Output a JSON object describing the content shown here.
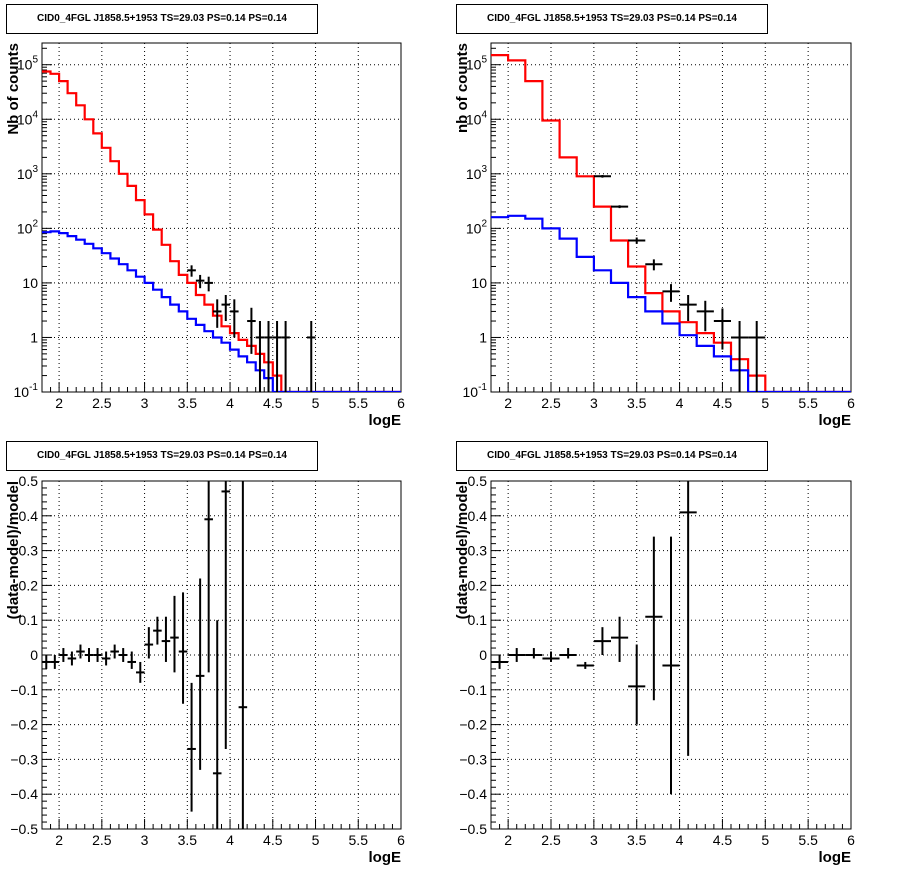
{
  "chart_data": [
    {
      "type": "line",
      "title": "CID0_4FGL J1858.5+1953 TS=29.03 PS=0.14 PS=0.14",
      "xlabel": "logE",
      "ylabel": "Nb of counts",
      "xlim": [
        1.8,
        6.0
      ],
      "ylim": [
        0.1,
        250000
      ],
      "yscale": "log",
      "grid": true,
      "x_ticks": [
        "2",
        "2.5",
        "3",
        "3.5",
        "4",
        "4.5",
        "5",
        "5.5",
        "6"
      ],
      "y_ticks": [
        "10^-1",
        "1",
        "10",
        "10^2",
        "10^3",
        "10^4",
        "10^5"
      ],
      "bin_edges": [
        1.8,
        1.9,
        2.0,
        2.1,
        2.2,
        2.3,
        2.4,
        2.5,
        2.6,
        2.7,
        2.8,
        2.9,
        3.0,
        3.1,
        3.2,
        3.3,
        3.4,
        3.5,
        3.6,
        3.7,
        3.8,
        3.9,
        4.0,
        4.1,
        4.2,
        4.3,
        4.4,
        4.5,
        4.6,
        4.7,
        4.8,
        4.9,
        5.0,
        5.1,
        5.2,
        5.3,
        5.4,
        5.5,
        5.6,
        5.7,
        5.8,
        5.9,
        6.0
      ],
      "series": [
        {
          "color": "#ff0000",
          "style": "step",
          "values": [
            75000,
            68000,
            50000,
            30000,
            18000,
            10000,
            5500,
            3000,
            1700,
            1000,
            600,
            330,
            180,
            95,
            50,
            25,
            14,
            10,
            6,
            4,
            2.5,
            1.6,
            1.2,
            0.9,
            0.7,
            0.5,
            0.35,
            0.2,
            0.1,
            0.1,
            0.1,
            0.1,
            0.1,
            0.1,
            0.1,
            0.1,
            0.1,
            0.1,
            0.1,
            0.1,
            0.1,
            0.1
          ]
        },
        {
          "color": "#0000ff",
          "style": "step",
          "values": [
            85,
            88,
            82,
            72,
            62,
            52,
            43,
            35,
            28,
            22,
            17,
            13,
            10,
            7.5,
            5.5,
            4,
            3,
            2.2,
            1.7,
            1.3,
            1.0,
            0.8,
            0.6,
            0.45,
            0.35,
            0.25,
            0.18,
            0.1,
            0.1,
            0.1,
            0.1,
            0.1,
            0.1,
            0.1,
            0.1,
            0.1,
            0.1,
            0.1,
            0.1,
            0.1,
            0.1,
            0.1
          ]
        },
        {
          "color": "#000000",
          "style": "errorbars",
          "points": [
            {
              "x": 3.55,
              "y": 17,
              "ylo": 13,
              "yhi": 21
            },
            {
              "x": 3.65,
              "y": 11,
              "ylo": 8,
              "yhi": 14
            },
            {
              "x": 3.75,
              "y": 10,
              "ylo": 7,
              "yhi": 13
            },
            {
              "x": 3.85,
              "y": 3,
              "ylo": 1.5,
              "yhi": 5
            },
            {
              "x": 3.95,
              "y": 4,
              "ylo": 2,
              "yhi": 6
            },
            {
              "x": 4.05,
              "y": 3,
              "ylo": 1,
              "yhi": 5
            },
            {
              "x": 4.25,
              "y": 2,
              "ylo": 0.5,
              "yhi": 3.5
            },
            {
              "x": 4.35,
              "y": 1,
              "ylo": 0.1,
              "yhi": 2
            },
            {
              "x": 4.45,
              "y": 1,
              "ylo": 0.1,
              "yhi": 2
            },
            {
              "x": 4.55,
              "y": 1,
              "ylo": 0.1,
              "yhi": 2
            },
            {
              "x": 4.65,
              "y": 1,
              "ylo": 0.1,
              "yhi": 2
            },
            {
              "x": 4.95,
              "y": 1,
              "ylo": 0.1,
              "yhi": 2
            }
          ]
        }
      ]
    },
    {
      "type": "line",
      "title": "CID0_4FGL J1858.5+1953 TS=29.03 PS=0.14 PS=0.14",
      "xlabel": "logE",
      "ylabel": "nb of counts",
      "xlim": [
        1.8,
        6.0
      ],
      "ylim": [
        0.1,
        250000
      ],
      "yscale": "log",
      "grid": true,
      "x_ticks": [
        "2",
        "2.5",
        "3",
        "3.5",
        "4",
        "4.5",
        "5",
        "5.5",
        "6"
      ],
      "y_ticks": [
        "10^-1",
        "1",
        "10",
        "10^2",
        "10^3",
        "10^4",
        "10^5"
      ],
      "bin_edges": [
        1.8,
        2.0,
        2.2,
        2.4,
        2.6,
        2.8,
        3.0,
        3.2,
        3.4,
        3.6,
        3.8,
        4.0,
        4.2,
        4.4,
        4.6,
        4.8,
        5.0,
        5.2,
        5.4,
        5.6,
        5.8,
        6.0
      ],
      "series": [
        {
          "color": "#ff0000",
          "style": "step",
          "values": [
            150000,
            120000,
            50000,
            9500,
            2000,
            900,
            250,
            60,
            20,
            6.5,
            3,
            1.9,
            1.2,
            0.8,
            0.4,
            0.2,
            0.1,
            0.1,
            0.1,
            0.1,
            0.1
          ]
        },
        {
          "color": "#0000ff",
          "style": "step",
          "values": [
            160,
            170,
            150,
            100,
            65,
            30,
            17,
            10,
            5.5,
            3,
            1.8,
            1.1,
            0.7,
            0.45,
            0.25,
            0.1,
            0.1,
            0.1,
            0.1,
            0.1,
            0.1
          ]
        },
        {
          "color": "#000000",
          "style": "errorbars",
          "points": [
            {
              "x": 3.1,
              "y": 900,
              "ylo": 850,
              "yhi": 950
            },
            {
              "x": 3.3,
              "y": 250,
              "ylo": 235,
              "yhi": 265
            },
            {
              "x": 3.5,
              "y": 60,
              "ylo": 52,
              "yhi": 68
            },
            {
              "x": 3.7,
              "y": 22,
              "ylo": 17,
              "yhi": 27
            },
            {
              "x": 3.9,
              "y": 7,
              "ylo": 4.5,
              "yhi": 9.5
            },
            {
              "x": 4.1,
              "y": 4,
              "ylo": 2,
              "yhi": 6
            },
            {
              "x": 4.3,
              "y": 3,
              "ylo": 1.3,
              "yhi": 4.7
            },
            {
              "x": 4.5,
              "y": 2,
              "ylo": 0.6,
              "yhi": 3.4
            },
            {
              "x": 4.7,
              "y": 1,
              "ylo": 0.1,
              "yhi": 2
            },
            {
              "x": 4.9,
              "y": 1,
              "ylo": 0.1,
              "yhi": 2
            }
          ]
        }
      ]
    },
    {
      "type": "scatter",
      "title": "CID0_4FGL J1858.5+1953 TS=29.03 PS=0.14 PS=0.14",
      "xlabel": "logE",
      "ylabel": "(data-model)/model",
      "xlim": [
        1.8,
        6.0
      ],
      "ylim": [
        -0.5,
        0.5
      ],
      "grid": true,
      "x_ticks": [
        "2",
        "2.5",
        "3",
        "3.5",
        "4",
        "4.5",
        "5",
        "5.5",
        "6"
      ],
      "y_ticks": [
        "-0.5",
        "-0.4",
        "-0.3",
        "-0.2",
        "-0.1",
        "0",
        "0.1",
        "0.2",
        "0.3",
        "0.4",
        "0.5"
      ],
      "points": [
        {
          "x": 1.85,
          "y": -0.02,
          "ylo": -0.04,
          "yhi": 0.0
        },
        {
          "x": 1.95,
          "y": -0.02,
          "ylo": -0.04,
          "yhi": 0.0
        },
        {
          "x": 2.05,
          "y": 0.0,
          "ylo": -0.02,
          "yhi": 0.02
        },
        {
          "x": 2.15,
          "y": -0.01,
          "ylo": -0.03,
          "yhi": 0.01
        },
        {
          "x": 2.25,
          "y": 0.01,
          "ylo": -0.01,
          "yhi": 0.03
        },
        {
          "x": 2.35,
          "y": 0.0,
          "ylo": -0.02,
          "yhi": 0.02
        },
        {
          "x": 2.45,
          "y": 0.0,
          "ylo": -0.02,
          "yhi": 0.02
        },
        {
          "x": 2.55,
          "y": -0.01,
          "ylo": -0.03,
          "yhi": 0.01
        },
        {
          "x": 2.65,
          "y": 0.01,
          "ylo": -0.01,
          "yhi": 0.03
        },
        {
          "x": 2.75,
          "y": 0.0,
          "ylo": -0.02,
          "yhi": 0.02
        },
        {
          "x": 2.85,
          "y": -0.02,
          "ylo": -0.04,
          "yhi": 0.01
        },
        {
          "x": 2.95,
          "y": -0.05,
          "ylo": -0.08,
          "yhi": -0.02
        },
        {
          "x": 3.05,
          "y": 0.03,
          "ylo": -0.01,
          "yhi": 0.08
        },
        {
          "x": 3.15,
          "y": 0.07,
          "ylo": 0.03,
          "yhi": 0.11
        },
        {
          "x": 3.25,
          "y": 0.04,
          "ylo": -0.02,
          "yhi": 0.11
        },
        {
          "x": 3.35,
          "y": 0.05,
          "ylo": -0.05,
          "yhi": 0.17
        },
        {
          "x": 3.45,
          "y": 0.01,
          "ylo": -0.14,
          "yhi": 0.18
        },
        {
          "x": 3.55,
          "y": -0.27,
          "ylo": -0.45,
          "yhi": -0.08
        },
        {
          "x": 3.65,
          "y": -0.06,
          "ylo": -0.33,
          "yhi": 0.22
        },
        {
          "x": 3.75,
          "y": 0.39,
          "ylo": -0.05,
          "yhi": 0.8
        },
        {
          "x": 3.85,
          "y": -0.34,
          "ylo": -0.8,
          "yhi": 0.1
        },
        {
          "x": 3.95,
          "y": 0.47,
          "ylo": -0.27,
          "yhi": 0.8
        },
        {
          "x": 4.15,
          "y": -0.15,
          "ylo": -0.8,
          "yhi": 0.8
        }
      ]
    },
    {
      "type": "scatter",
      "title": "CID0_4FGL J1858.5+1953 TS=29.03 PS=0.14 PS=0.14",
      "xlabel": "logE",
      "ylabel": "(data-model)/model",
      "xlim": [
        1.8,
        6.0
      ],
      "ylim": [
        -0.5,
        0.5
      ],
      "grid": true,
      "x_ticks": [
        "2",
        "2.5",
        "3",
        "3.5",
        "4",
        "4.5",
        "5",
        "5.5",
        "6"
      ],
      "y_ticks": [
        "-0.5",
        "-0.4",
        "-0.3",
        "-0.2",
        "-0.1",
        "0",
        "0.1",
        "0.2",
        "0.3",
        "0.4",
        "0.5"
      ],
      "points": [
        {
          "x": 1.9,
          "y": -0.02,
          "ylo": -0.04,
          "yhi": 0.0
        },
        {
          "x": 2.1,
          "y": 0.0,
          "ylo": -0.02,
          "yhi": 0.02
        },
        {
          "x": 2.3,
          "y": 0.0,
          "ylo": -0.01,
          "yhi": 0.02
        },
        {
          "x": 2.5,
          "y": -0.01,
          "ylo": -0.02,
          "yhi": 0.01
        },
        {
          "x": 2.7,
          "y": 0.0,
          "ylo": -0.01,
          "yhi": 0.02
        },
        {
          "x": 2.9,
          "y": -0.03,
          "ylo": -0.04,
          "yhi": -0.02
        },
        {
          "x": 3.1,
          "y": 0.04,
          "ylo": 0.0,
          "yhi": 0.08
        },
        {
          "x": 3.3,
          "y": 0.05,
          "ylo": -0.02,
          "yhi": 0.11
        },
        {
          "x": 3.5,
          "y": -0.09,
          "ylo": -0.2,
          "yhi": 0.03
        },
        {
          "x": 3.7,
          "y": 0.11,
          "ylo": -0.13,
          "yhi": 0.34
        },
        {
          "x": 3.9,
          "y": -0.03,
          "ylo": -0.4,
          "yhi": 0.34
        },
        {
          "x": 4.1,
          "y": 0.41,
          "ylo": -0.29,
          "yhi": 0.8
        }
      ]
    }
  ]
}
